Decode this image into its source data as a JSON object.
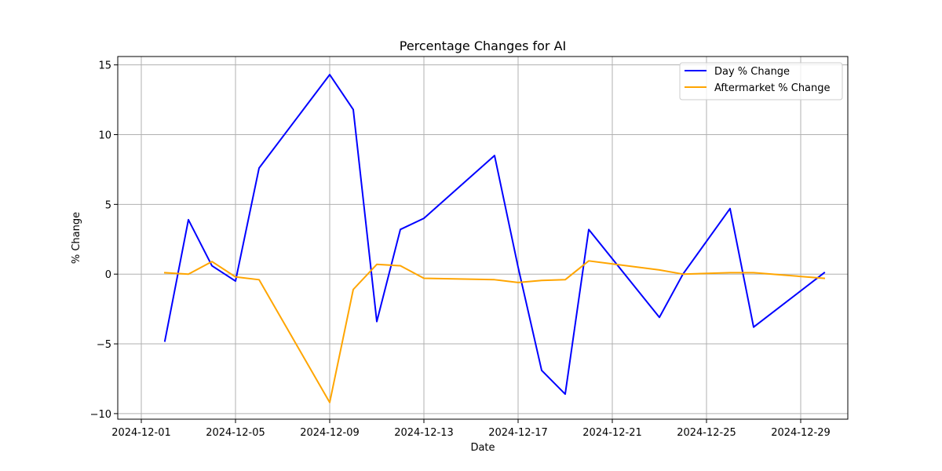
{
  "chart_data": {
    "type": "line",
    "title": "Percentage Changes for AI",
    "xlabel": "Date",
    "ylabel": "% Change",
    "xlim": [
      "2024-11-30",
      "2024-12-31"
    ],
    "ylim": [
      -10.4,
      15.6
    ],
    "grid": true,
    "legend_position": "top-right",
    "x_ticks": [
      "2024-12-01",
      "2024-12-05",
      "2024-12-09",
      "2024-12-13",
      "2024-12-17",
      "2024-12-21",
      "2024-12-25",
      "2024-12-29"
    ],
    "y_ticks": [
      -10,
      -5,
      0,
      5,
      10,
      15
    ],
    "y_tick_labels": [
      "−10",
      "−5",
      "0",
      "5",
      "10",
      "15"
    ],
    "series": [
      {
        "name": "Day % Change",
        "color": "#0000ff",
        "x": [
          "2024-12-02",
          "2024-12-03",
          "2024-12-04",
          "2024-12-05",
          "2024-12-06",
          "2024-12-09",
          "2024-12-10",
          "2024-12-11",
          "2024-12-12",
          "2024-12-13",
          "2024-12-16",
          "2024-12-17",
          "2024-12-18",
          "2024-12-19",
          "2024-12-20",
          "2024-12-23",
          "2024-12-24",
          "2024-12-26",
          "2024-12-27",
          "2024-12-30"
        ],
        "values": [
          -4.8,
          3.9,
          0.6,
          -0.5,
          7.6,
          14.3,
          11.8,
          -3.4,
          3.2,
          4.0,
          8.5,
          0.5,
          -6.9,
          -8.6,
          3.2,
          -3.1,
          0.0,
          4.7,
          -3.8,
          0.1
        ]
      },
      {
        "name": "Aftermarket % Change",
        "color": "#ffa500",
        "x": [
          "2024-12-02",
          "2024-12-03",
          "2024-12-04",
          "2024-12-05",
          "2024-12-06",
          "2024-12-09",
          "2024-12-10",
          "2024-12-11",
          "2024-12-12",
          "2024-12-13",
          "2024-12-16",
          "2024-12-17",
          "2024-12-18",
          "2024-12-19",
          "2024-12-20",
          "2024-12-23",
          "2024-12-24",
          "2024-12-26",
          "2024-12-27",
          "2024-12-30"
        ],
        "values": [
          0.1,
          0.0,
          0.9,
          -0.2,
          -0.4,
          -9.2,
          -1.1,
          0.7,
          0.6,
          -0.3,
          -0.4,
          -0.6,
          -0.45,
          -0.4,
          0.95,
          0.3,
          0.0,
          0.1,
          0.1,
          -0.3
        ]
      }
    ]
  }
}
